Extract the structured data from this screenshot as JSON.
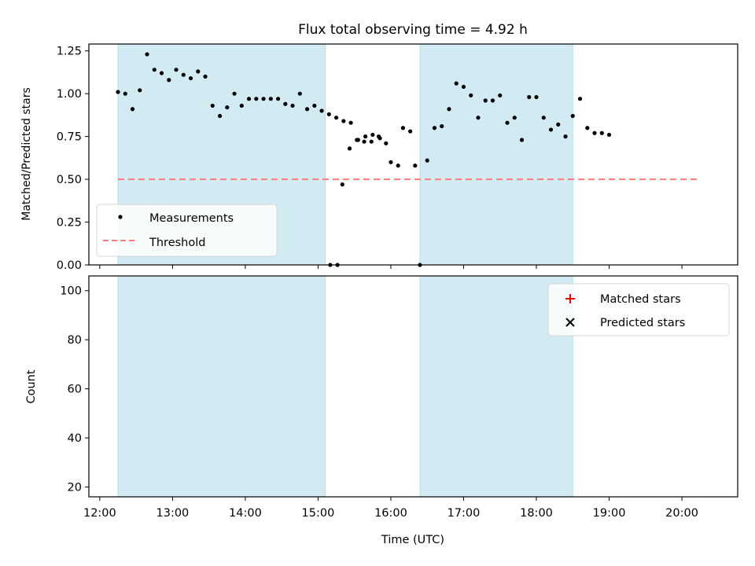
{
  "chart_data": [
    {
      "type": "scatter",
      "title": "Flux total observing time = 4.92 h",
      "xlabel": "",
      "ylabel": "Matched/Predicted stars",
      "xlim": [
        "11:51",
        "20:46"
      ],
      "ylim": [
        0,
        1.29
      ],
      "y_ticks": [
        "0.00",
        "0.25",
        "0.50",
        "0.75",
        "1.00",
        "1.25"
      ],
      "shaded_intervals": [
        [
          "12:15",
          "15:06"
        ],
        [
          "16:24",
          "18:30"
        ]
      ],
      "shade_color": "#add8e6",
      "legend_position": "lower-left",
      "series": [
        {
          "name": "Measurements",
          "marker": "dot",
          "color": "#000000",
          "points": [
            [
              "12:15",
              1.01
            ],
            [
              "12:21",
              1.0
            ],
            [
              "12:27",
              0.91
            ],
            [
              "12:33",
              1.02
            ],
            [
              "12:39",
              1.23
            ],
            [
              "12:45",
              1.14
            ],
            [
              "12:51",
              1.12
            ],
            [
              "12:57",
              1.08
            ],
            [
              "13:03",
              1.14
            ],
            [
              "13:09",
              1.11
            ],
            [
              "13:15",
              1.09
            ],
            [
              "13:21",
              1.13
            ],
            [
              "13:27",
              1.1
            ],
            [
              "13:33",
              0.93
            ],
            [
              "13:39",
              0.87
            ],
            [
              "13:45",
              0.92
            ],
            [
              "13:51",
              1.0
            ],
            [
              "13:57",
              0.93
            ],
            [
              "14:03",
              0.97
            ],
            [
              "14:09",
              0.97
            ],
            [
              "14:15",
              0.97
            ],
            [
              "14:21",
              0.97
            ],
            [
              "14:27",
              0.97
            ],
            [
              "14:33",
              0.94
            ],
            [
              "14:39",
              0.93
            ],
            [
              "14:45",
              1.0
            ],
            [
              "14:51",
              0.91
            ],
            [
              "14:57",
              0.93
            ],
            [
              "15:03",
              0.9
            ],
            [
              "15:09",
              0.88
            ],
            [
              "15:15",
              0.86
            ],
            [
              "15:21",
              0.84
            ],
            [
              "15:27",
              0.83
            ],
            [
              "15:33",
              0.73
            ],
            [
              "15:39",
              0.75
            ],
            [
              "15:45",
              0.76
            ],
            [
              "15:51",
              0.74
            ],
            [
              "15:10",
              0.0
            ],
            [
              "15:16",
              0.0
            ],
            [
              "15:20",
              0.47
            ],
            [
              "15:26",
              0.68
            ],
            [
              "15:32",
              0.73
            ],
            [
              "15:38",
              0.72
            ],
            [
              "15:44",
              0.72
            ],
            [
              "15:50",
              0.75
            ],
            [
              "15:56",
              0.71
            ],
            [
              "16:00",
              0.6
            ],
            [
              "16:06",
              0.58
            ],
            [
              "16:10",
              0.8
            ],
            [
              "16:16",
              0.78
            ],
            [
              "16:20",
              0.58
            ],
            [
              "16:24",
              0.0
            ],
            [
              "16:30",
              0.61
            ],
            [
              "16:36",
              0.8
            ],
            [
              "16:42",
              0.81
            ],
            [
              "16:48",
              0.91
            ],
            [
              "16:54",
              1.06
            ],
            [
              "17:00",
              1.04
            ],
            [
              "17:06",
              0.99
            ],
            [
              "17:12",
              0.86
            ],
            [
              "17:18",
              0.96
            ],
            [
              "17:24",
              0.96
            ],
            [
              "17:30",
              0.99
            ],
            [
              "17:36",
              0.83
            ],
            [
              "17:42",
              0.86
            ],
            [
              "17:48",
              0.73
            ],
            [
              "17:54",
              0.98
            ],
            [
              "18:00",
              0.98
            ],
            [
              "18:06",
              0.86
            ],
            [
              "18:12",
              0.79
            ],
            [
              "18:18",
              0.82
            ],
            [
              "18:24",
              0.75
            ],
            [
              "18:30",
              0.87
            ],
            [
              "18:36",
              0.97
            ],
            [
              "18:42",
              0.8
            ],
            [
              "18:48",
              0.77
            ],
            [
              "18:54",
              0.77
            ],
            [
              "19:00",
              0.76
            ]
          ]
        },
        {
          "name": "Threshold",
          "marker": "dashed-line",
          "color": "#ff7b7b",
          "y": 0.5,
          "x_range": [
            "12:15",
            "20:15"
          ]
        }
      ]
    },
    {
      "type": "scatter",
      "xlabel": "Time (UTC)",
      "ylabel": "Count",
      "xlim": [
        "11:51",
        "20:46"
      ],
      "ylim": [
        16,
        106
      ],
      "y_ticks": [
        "20",
        "40",
        "60",
        "80",
        "100"
      ],
      "x_ticks": [
        "12:00",
        "13:00",
        "14:00",
        "15:00",
        "16:00",
        "17:00",
        "18:00",
        "19:00",
        "20:00"
      ],
      "shaded_intervals": [
        [
          "12:15",
          "15:06"
        ],
        [
          "16:24",
          "18:30"
        ]
      ],
      "shade_color": "#add8e6",
      "legend_position": "upper-right",
      "series": [
        {
          "name": "Matched stars",
          "marker": "plus",
          "color": "#ff0000",
          "points": []
        },
        {
          "name": "Predicted stars",
          "marker": "x",
          "color": "#000000",
          "points": []
        }
      ]
    }
  ]
}
